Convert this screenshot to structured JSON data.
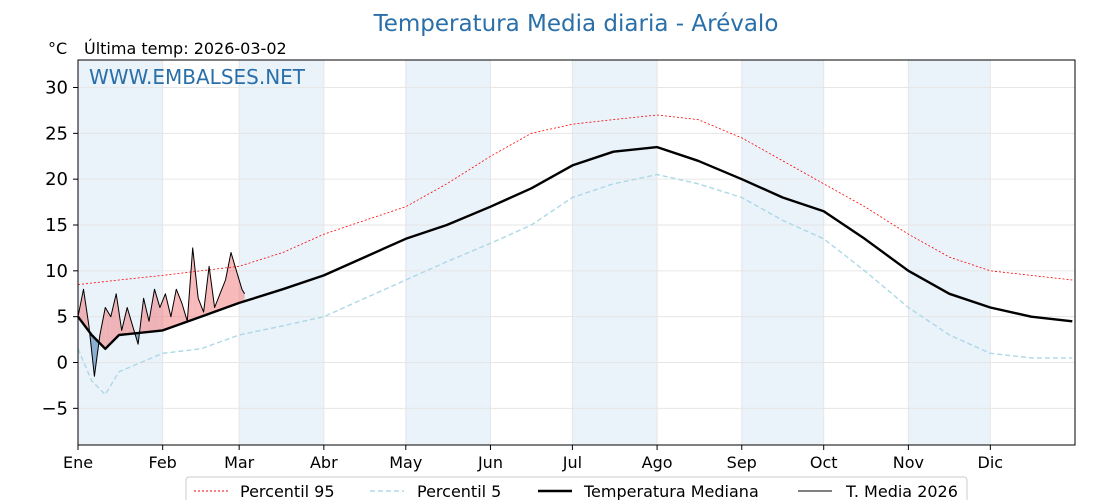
{
  "chart_data": {
    "type": "line",
    "title": "Temperatura Media diaria - Arévalo",
    "unit_label": "°C",
    "last_temp_label": "Última temp: 2026-03-02",
    "watermark": "WWW.EMBALSES.NET",
    "ylim": [
      -9,
      33
    ],
    "yticks": [
      30,
      25,
      20,
      15,
      10,
      5,
      0,
      -5
    ],
    "ytick_labels": [
      "30",
      "25",
      "20",
      "15",
      "10",
      "5",
      "0",
      "−5"
    ],
    "xlim": [
      0,
      365
    ],
    "months": [
      {
        "label": "Ene",
        "start": 0
      },
      {
        "label": "Feb",
        "start": 31
      },
      {
        "label": "Mar",
        "start": 59
      },
      {
        "label": "Abr",
        "start": 90
      },
      {
        "label": "May",
        "start": 120
      },
      {
        "label": "Jun",
        "start": 151
      },
      {
        "label": "Jul",
        "start": 181
      },
      {
        "label": "Ago",
        "start": 212
      },
      {
        "label": "Sep",
        "start": 243
      },
      {
        "label": "Oct",
        "start": 273
      },
      {
        "label": "Nov",
        "start": 304
      },
      {
        "label": "Dic",
        "start": 334
      }
    ],
    "grid": true,
    "legend_position": "bottom",
    "colors": {
      "p95": "#ff0000",
      "p5": "#add8e6",
      "median": "#000000",
      "current": "#000000",
      "above_fill": "#f08080",
      "below_fill": "#4682b4",
      "band": "#eaf2fa",
      "title": "#2a6fa8"
    },
    "series": [
      {
        "name": "Percentil 95",
        "key": "p95",
        "x": [
          0,
          15,
          31,
          45,
          59,
          75,
          90,
          105,
          120,
          135,
          151,
          166,
          181,
          196,
          212,
          227,
          243,
          258,
          273,
          288,
          304,
          319,
          334,
          349,
          364
        ],
        "values": [
          8.5,
          9.0,
          9.5,
          10.0,
          10.5,
          12.0,
          14.0,
          15.5,
          17.0,
          19.5,
          22.5,
          25.0,
          26.0,
          26.5,
          27.0,
          26.5,
          24.5,
          22.0,
          19.5,
          17.0,
          14.0,
          11.5,
          10.0,
          9.5,
          9.0
        ]
      },
      {
        "name": "Percentil 5",
        "key": "p5",
        "x": [
          0,
          5,
          10,
          15,
          31,
          45,
          59,
          75,
          90,
          105,
          120,
          135,
          151,
          166,
          181,
          196,
          212,
          227,
          243,
          258,
          273,
          288,
          304,
          319,
          334,
          349,
          364
        ],
        "values": [
          1.5,
          -2.0,
          -3.5,
          -1.0,
          1.0,
          1.5,
          3.0,
          4.0,
          5.0,
          7.0,
          9.0,
          11.0,
          13.0,
          15.0,
          18.0,
          19.5,
          20.5,
          19.5,
          18.0,
          15.5,
          13.5,
          10.0,
          6.0,
          3.0,
          1.0,
          0.5,
          0.5
        ]
      },
      {
        "name": "Temperatura Mediana",
        "key": "median",
        "x": [
          0,
          5,
          10,
          15,
          31,
          45,
          59,
          75,
          90,
          105,
          120,
          135,
          151,
          166,
          181,
          196,
          212,
          227,
          243,
          258,
          273,
          288,
          304,
          319,
          334,
          349,
          364
        ],
        "values": [
          5.0,
          3.0,
          1.5,
          3.0,
          3.5,
          5.0,
          6.5,
          8.0,
          9.5,
          11.5,
          13.5,
          15.0,
          17.0,
          19.0,
          21.5,
          23.0,
          23.5,
          22.0,
          20.0,
          18.0,
          16.5,
          13.5,
          10.0,
          7.5,
          6.0,
          5.0,
          4.5
        ]
      },
      {
        "name": "T. Media 2026",
        "key": "current",
        "x": [
          0,
          2,
          4,
          6,
          8,
          10,
          12,
          14,
          16,
          18,
          20,
          22,
          24,
          26,
          28,
          30,
          32,
          34,
          36,
          38,
          40,
          42,
          44,
          46,
          48,
          50,
          52,
          54,
          56,
          58,
          60,
          61
        ],
        "values": [
          5.0,
          8.0,
          4.0,
          -1.5,
          3.0,
          6.0,
          5.0,
          7.5,
          3.5,
          6.0,
          4.0,
          2.0,
          7.0,
          4.5,
          8.0,
          6.0,
          7.5,
          5.0,
          8.0,
          6.5,
          4.5,
          12.5,
          7.0,
          5.5,
          10.5,
          6.0,
          7.5,
          9.0,
          12.0,
          10.0,
          8.0,
          7.5
        ]
      }
    ]
  }
}
